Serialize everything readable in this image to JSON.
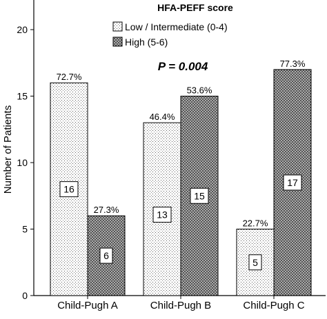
{
  "chart_data": {
    "type": "bar",
    "title": "",
    "xlabel": "",
    "ylabel": "Number of Patients",
    "ylim": [
      0,
      22
    ],
    "yticks": [
      0,
      5,
      10,
      15,
      20
    ],
    "grid": false,
    "categories": [
      "Child-Pugh A",
      "Child-Pugh B",
      "Child-Pugh C"
    ],
    "legend": {
      "title": "HFA-PEFF score",
      "placement": "top-center"
    },
    "annotation": "P = 0.004",
    "series": [
      {
        "name": "Low / Intermediate (0-4)",
        "values": [
          16,
          13,
          5
        ],
        "percent_labels": [
          "72.7%",
          "46.4%",
          "22.7%"
        ],
        "pattern": "dots"
      },
      {
        "name": "High (5-6)",
        "values": [
          6,
          15,
          17
        ],
        "percent_labels": [
          "27.3%",
          "53.6%",
          "77.3%"
        ],
        "pattern": "crosshatch"
      }
    ]
  }
}
